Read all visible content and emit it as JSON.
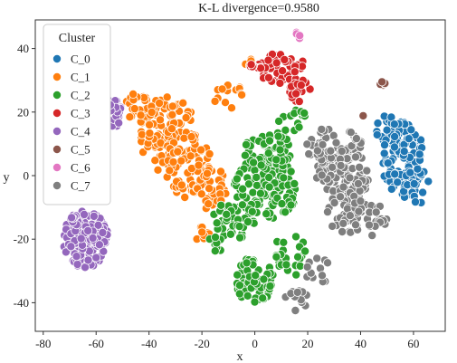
{
  "chart_data": {
    "type": "scatter",
    "title": "K-L divergence=0.9580",
    "xlabel": "x",
    "ylabel": "y",
    "xlim": [
      -83,
      72
    ],
    "ylim": [
      -49,
      49
    ],
    "xticks": [
      -80,
      -60,
      -40,
      -20,
      0,
      20,
      40,
      60
    ],
    "yticks": [
      -40,
      -20,
      0,
      20,
      40
    ],
    "xtick_labels": [
      "-80",
      "-60",
      "-40",
      "-20",
      "0",
      "20",
      "40",
      "60"
    ],
    "ytick_labels": [
      "-40",
      "-20",
      "0",
      "20",
      "40"
    ],
    "grid": false,
    "legend": {
      "title": "Cluster",
      "placement": "top-left",
      "entries": [
        "C_0",
        "C_1",
        "C_2",
        "C_3",
        "C_4",
        "C_5",
        "C_6",
        "C_7"
      ]
    },
    "colors": {
      "C_0": "#1f77b4",
      "C_1": "#ff7f0e",
      "C_2": "#2ca02c",
      "C_3": "#d62728",
      "C_4": "#9467bd",
      "C_5": "#8c564b",
      "C_6": "#e377c2",
      "C_7": "#7f7f7f"
    },
    "series": [
      {
        "name": "C_0",
        "regions": [
          {
            "cx": 56,
            "cy": 5,
            "rx": 8,
            "ry": 12,
            "n": 120
          },
          {
            "cx": 50,
            "cy": 14,
            "rx": 5,
            "ry": 5,
            "n": 20
          },
          {
            "cx": 61,
            "cy": -3,
            "rx": 5,
            "ry": 6,
            "n": 20
          }
        ]
      },
      {
        "name": "C_1",
        "regions": [
          {
            "cx": -33,
            "cy": 13,
            "rx": 11,
            "ry": 12,
            "n": 110
          },
          {
            "cx": -25,
            "cy": 3,
            "rx": 9,
            "ry": 10,
            "n": 70
          },
          {
            "cx": -16,
            "cy": -4,
            "rx": 6,
            "ry": 7,
            "n": 40
          },
          {
            "cx": -44,
            "cy": 22,
            "rx": 6,
            "ry": 5,
            "n": 25
          },
          {
            "cx": -20,
            "cy": -18,
            "rx": 3,
            "ry": 3,
            "n": 10
          },
          {
            "cx": -10,
            "cy": 25,
            "rx": 6,
            "ry": 4,
            "n": 15
          },
          {
            "cx": -2,
            "cy": 35,
            "rx": 2,
            "ry": 2,
            "n": 5
          }
        ]
      },
      {
        "name": "C_2",
        "regions": [
          {
            "cx": 4,
            "cy": -4,
            "rx": 12,
            "ry": 10,
            "n": 130
          },
          {
            "cx": 5,
            "cy": 8,
            "rx": 9,
            "ry": 6,
            "n": 55
          },
          {
            "cx": -8,
            "cy": -14,
            "rx": 8,
            "ry": 6,
            "n": 45
          },
          {
            "cx": 0,
            "cy": -33,
            "rx": 7,
            "ry": 8,
            "n": 60
          },
          {
            "cx": 14,
            "cy": -25,
            "rx": 7,
            "ry": 7,
            "n": 25
          },
          {
            "cx": 14,
            "cy": 18,
            "rx": 5,
            "ry": 5,
            "n": 15
          },
          {
            "cx": -15,
            "cy": -22,
            "rx": 3,
            "ry": 3,
            "n": 8
          }
        ]
      },
      {
        "name": "C_3",
        "regions": [
          {
            "cx": 10,
            "cy": 34,
            "rx": 9,
            "ry": 5,
            "n": 55
          },
          {
            "cx": 17,
            "cy": 27,
            "rx": 4,
            "ry": 4,
            "n": 20
          },
          {
            "cx": 0,
            "cy": 35,
            "rx": 3,
            "ry": 2,
            "n": 6
          }
        ]
      },
      {
        "name": "C_4",
        "regions": [
          {
            "cx": -64,
            "cy": -20,
            "rx": 8.5,
            "ry": 9,
            "n": 180
          },
          {
            "cx": -54,
            "cy": 20,
            "rx": 4,
            "ry": 5,
            "n": 35
          }
        ]
      },
      {
        "name": "C_5",
        "regions": [
          {
            "cx": 48.5,
            "cy": 29,
            "rx": 1.2,
            "ry": 0.8,
            "n": 6
          },
          {
            "cx": 41,
            "cy": 19,
            "rx": 0.6,
            "ry": 0.6,
            "n": 1
          }
        ]
      },
      {
        "name": "C_6",
        "regions": [
          {
            "cx": 16,
            "cy": 44,
            "rx": 1.5,
            "ry": 1.5,
            "n": 4
          }
        ]
      },
      {
        "name": "C_7",
        "regions": [
          {
            "cx": 33,
            "cy": 0,
            "rx": 10,
            "ry": 9,
            "n": 120
          },
          {
            "cx": 35,
            "cy": -12,
            "rx": 8,
            "ry": 6,
            "n": 45
          },
          {
            "cx": 45,
            "cy": -14,
            "rx": 5,
            "ry": 5,
            "n": 20
          },
          {
            "cx": 25,
            "cy": 10,
            "rx": 6,
            "ry": 6,
            "n": 25
          },
          {
            "cx": 16,
            "cy": -40,
            "rx": 5,
            "ry": 4,
            "n": 15
          },
          {
            "cx": 24,
            "cy": -30,
            "rx": 5,
            "ry": 4,
            "n": 12
          },
          {
            "cx": 38,
            "cy": 12,
            "rx": 3,
            "ry": 4,
            "n": 10
          }
        ]
      }
    ]
  }
}
